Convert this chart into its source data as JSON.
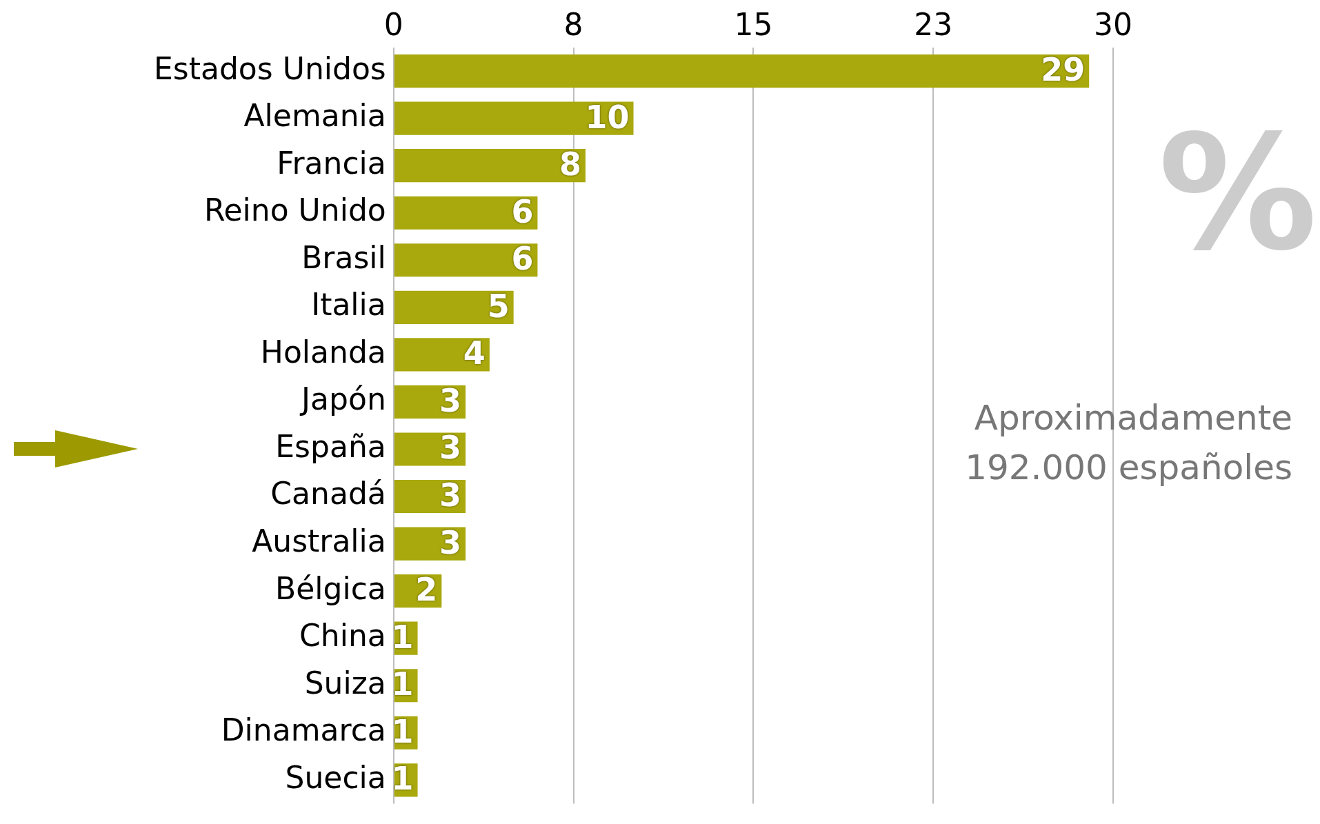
{
  "chart_data": {
    "type": "bar",
    "orientation": "horizontal",
    "categories": [
      "Estados Unidos",
      "Alemania",
      "Francia",
      "Reino Unido",
      "Brasil",
      "Italia",
      "Holanda",
      "Japón",
      "España",
      "Canadá",
      "Australia",
      "Bélgica",
      "China",
      "Suiza",
      "Dinamarca",
      "Suecia"
    ],
    "values": [
      29,
      10,
      8,
      6,
      6,
      5,
      4,
      3,
      3,
      3,
      3,
      2,
      1,
      1,
      1,
      1
    ],
    "color": "#a9a80c",
    "xlim": [
      0,
      30
    ],
    "xticks": [
      0,
      {
        "value": 7.5,
        "label": "8"
      },
      15,
      {
        "value": 22.5,
        "label": "23"
      },
      30
    ],
    "grid": "x",
    "legend": false,
    "data_labels": true,
    "annotations": [
      "%",
      "Aproximadamente 192.000 españoles"
    ]
  }
}
